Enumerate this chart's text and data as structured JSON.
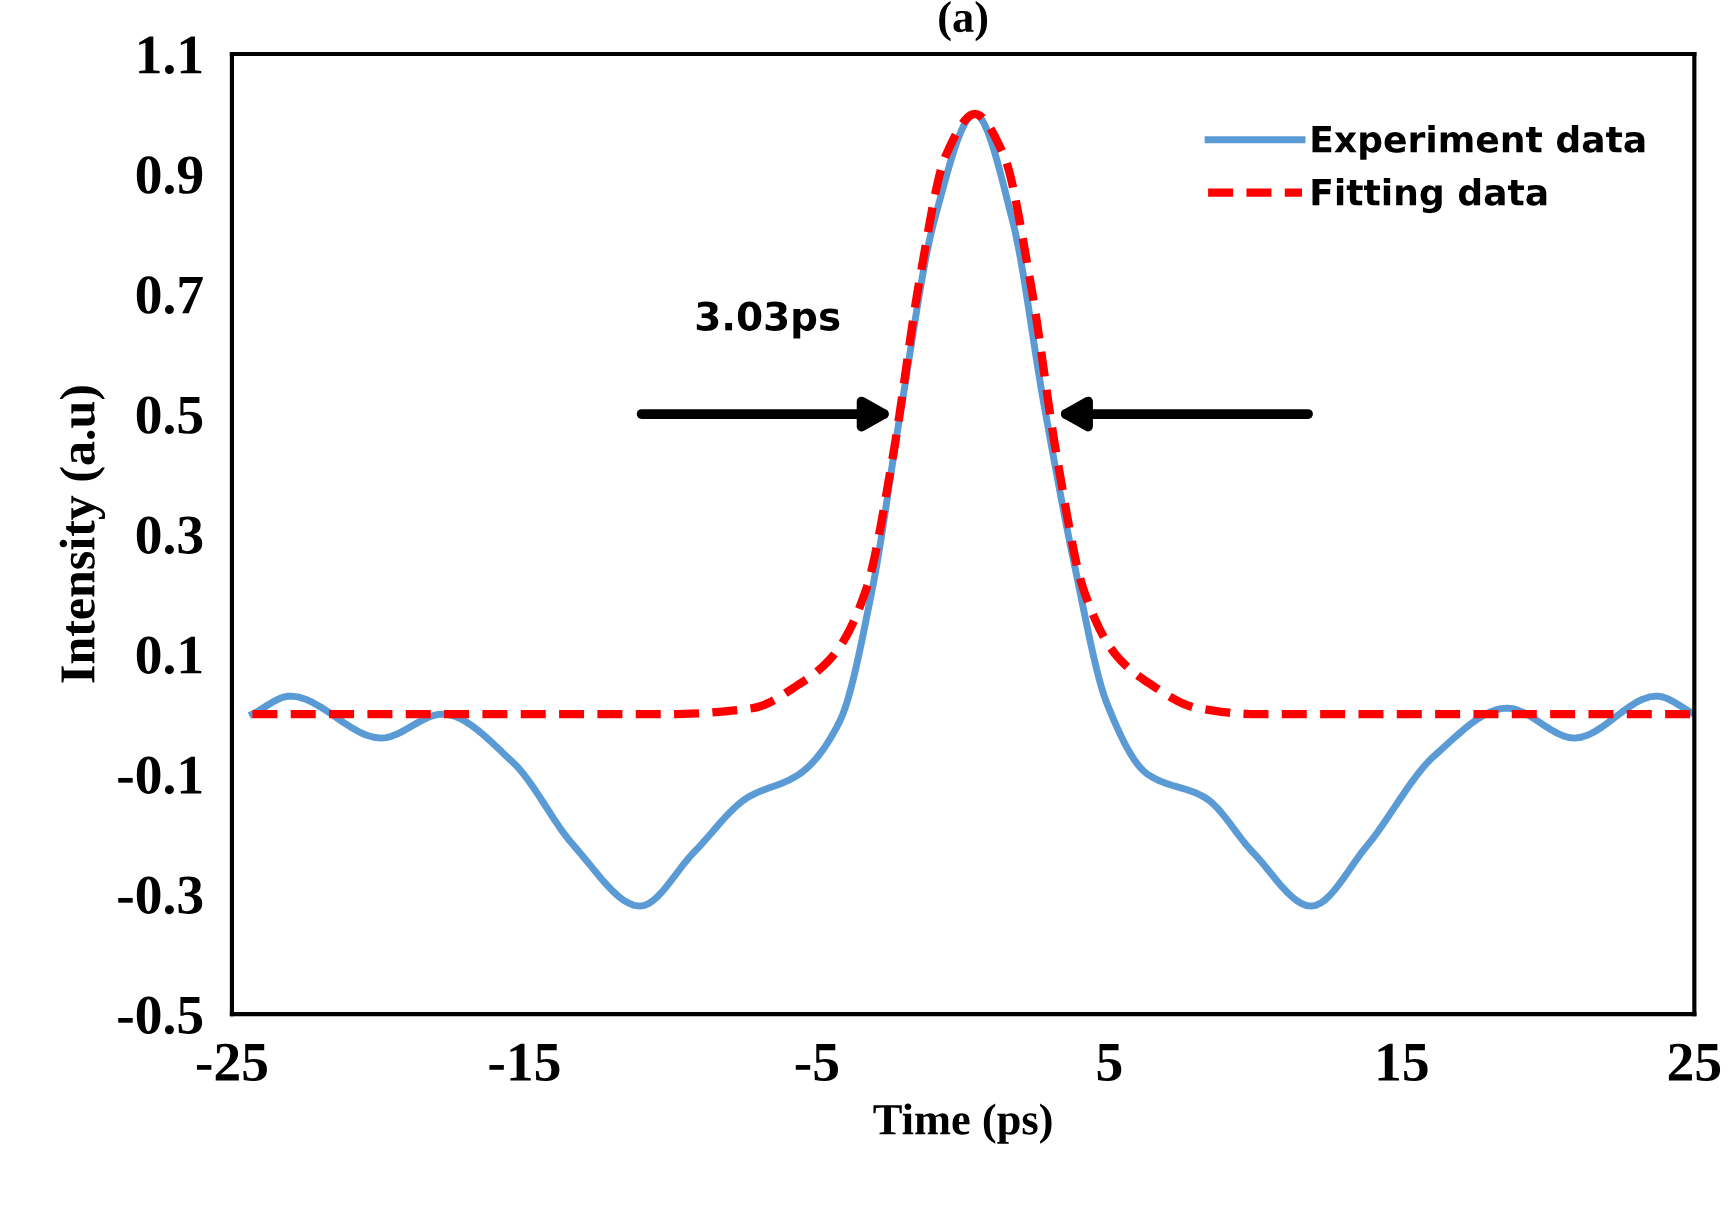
{
  "chart_data": {
    "type": "line",
    "title": "(a)",
    "xlabel": "Time (ps)",
    "ylabel": "Intensity (a.u)",
    "xlim": [
      -25,
      25
    ],
    "xticks": [
      -25,
      -15,
      -5,
      5,
      15,
      25
    ],
    "ylim": [
      -0.5,
      1.1
    ],
    "yticks": [
      -0.5,
      -0.3,
      -0.1,
      0.1,
      0.3,
      0.5,
      0.7,
      0.9,
      1.1
    ],
    "grid": false,
    "legend": "top right",
    "annotations": [
      "3.03ps"
    ],
    "series": [
      {
        "name": "Experiment data",
        "color": "#5b9bd5",
        "line_style": "solid",
        "x": [
          -24.3,
          -23.0,
          -19.9,
          -17.8,
          -15.4,
          -13.3,
          -11.05,
          -9.2,
          -7.4,
          -5.6,
          -4.2,
          -3.1,
          -2.15,
          -1.0,
          0.4,
          1.7,
          2.75,
          3.8,
          4.9,
          6.3,
          8.3,
          9.9,
          11.9,
          13.8,
          16.1,
          18.6,
          20.9,
          23.7,
          25.0
        ],
        "values": [
          0.0,
          0.03,
          -0.04,
          0.0,
          -0.08,
          -0.22,
          -0.32,
          -0.23,
          -0.14,
          -0.1,
          -0.01,
          0.21,
          0.5,
          0.82,
          1.0,
          0.82,
          0.52,
          0.25,
          0.02,
          -0.1,
          -0.14,
          -0.23,
          -0.32,
          -0.22,
          -0.07,
          0.01,
          -0.04,
          0.03,
          0.0
        ]
      },
      {
        "name": "Fitting data",
        "color": "#ff0000",
        "line_style": "dashed",
        "x": [
          -24.3,
          -10.0,
          -7.2,
          -5.6,
          -4.4,
          -3.3,
          -2.4,
          -1.5,
          -0.6,
          0.4,
          1.4,
          2.3,
          3.2,
          4.1,
          5.2,
          6.4,
          8.0,
          10.0,
          25.0
        ],
        "values": [
          0.0,
          0.0,
          0.01,
          0.05,
          0.1,
          0.21,
          0.43,
          0.72,
          0.93,
          1.0,
          0.93,
          0.72,
          0.43,
          0.21,
          0.1,
          0.05,
          0.01,
          0.0,
          0.0
        ]
      }
    ]
  }
}
